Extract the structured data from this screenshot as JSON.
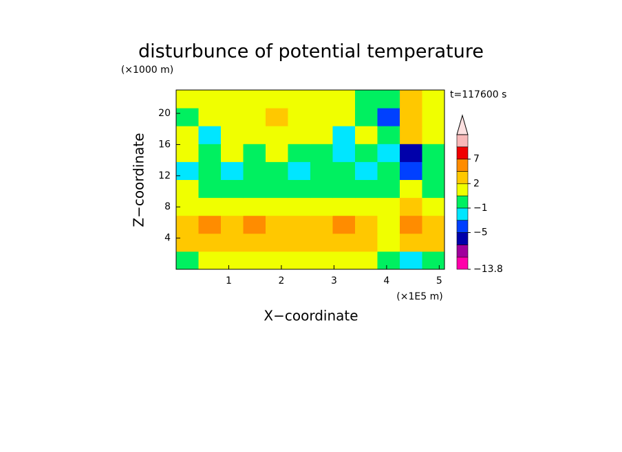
{
  "chart_data": {
    "type": "contour",
    "title": "disturbunce of potential temperature",
    "y_unit": "(×1000 m)",
    "x_unit": "(×1E5 m)",
    "time_label": "t=117600 s",
    "xlabel": "X−coordinate",
    "ylabel": "Z−coordinate",
    "xlim": [
      0,
      5.1
    ],
    "ylim": [
      0,
      23
    ],
    "xticks": [
      1,
      2,
      3,
      4,
      5
    ],
    "yticks": [
      4,
      8,
      12,
      16,
      20
    ],
    "x": [
      0.21,
      0.64,
      1.06,
      1.49,
      1.91,
      2.34,
      2.76,
      3.19,
      3.61,
      4.04,
      4.46,
      4.89
    ],
    "z": [
      1.15,
      3.45,
      5.75,
      8.05,
      10.35,
      12.65,
      14.95,
      17.25,
      19.55,
      21.85
    ],
    "values": [
      [
        0.5,
        1.5,
        1.5,
        1.5,
        1.5,
        1.5,
        1.5,
        1.5,
        1.5,
        0.5,
        -2,
        0.5
      ],
      [
        2.5,
        3,
        2.5,
        2.5,
        3,
        2.5,
        2.5,
        2.5,
        2.5,
        1.5,
        3,
        2.5
      ],
      [
        3,
        4.5,
        3,
        4.5,
        3,
        3,
        3,
        4,
        3,
        1.5,
        5,
        3
      ],
      [
        1.5,
        1.5,
        1.5,
        1.5,
        1.5,
        1.5,
        1.5,
        1.5,
        1.5,
        1.5,
        3,
        1.5
      ],
      [
        1.5,
        0.5,
        0.5,
        0.5,
        0.5,
        0.5,
        0.5,
        0.5,
        0.5,
        0.5,
        1.5,
        0.5
      ],
      [
        -2,
        0,
        -2,
        0,
        0,
        -2,
        0,
        0,
        -2,
        0,
        -4,
        0
      ],
      [
        1.5,
        0,
        1.5,
        0,
        1.5,
        0,
        0,
        -2,
        0,
        -2,
        -5.5,
        0
      ],
      [
        1.5,
        -2,
        1.5,
        1.5,
        1.5,
        1.5,
        1.5,
        -2,
        1.5,
        0,
        3,
        1.5
      ],
      [
        0,
        1.5,
        1.5,
        1.5,
        3,
        1.5,
        1.5,
        1.5,
        0,
        -4,
        3,
        1.5
      ],
      [
        1.5,
        1.5,
        1.5,
        1.5,
        1.5,
        1.5,
        1.5,
        1.5,
        0,
        0,
        3,
        1.5
      ]
    ],
    "levels": [
      -13.8,
      -8,
      -6.5,
      -5,
      -3,
      -1,
      1,
      2,
      4,
      7,
      9,
      11
    ],
    "colors": [
      "#ff00aa",
      "#a0009c",
      "#0000aa",
      "#0040ff",
      "#00e6ff",
      "#00f060",
      "#f0ff00",
      "#ffc800",
      "#ff8c00",
      "#f00000",
      "#f8b8b8"
    ],
    "extend_color": "#fde0e0",
    "colorbar_ticks": [
      {
        "value": -13.8,
        "label": "−13.8"
      },
      {
        "value": -5,
        "label": "−5"
      },
      {
        "value": -1,
        "label": "−1"
      },
      2,
      7
    ]
  }
}
